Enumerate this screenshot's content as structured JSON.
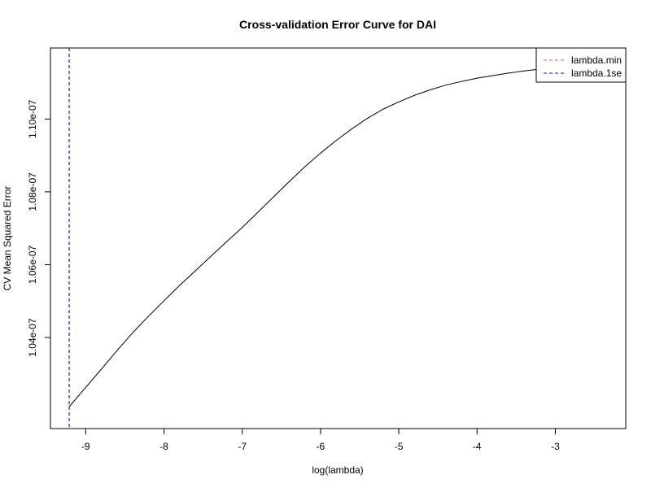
{
  "chart_data": {
    "type": "line",
    "title": "Cross-validation Error Curve for DAI",
    "xlabel": "log(lambda)",
    "ylabel": "CV Mean Squared Error",
    "xlim": [
      -9.45,
      -2.1
    ],
    "ylim": [
      1.015e-07,
      1.1195e-07
    ],
    "x_ticks": [
      -9,
      -8,
      -7,
      -6,
      -5,
      -4,
      -3
    ],
    "x_tick_labels": [
      "-9",
      "-8",
      "-7",
      "-6",
      "-5",
      "-4",
      "-3"
    ],
    "y_ticks": [
      1.04e-07,
      1.06e-07,
      1.08e-07,
      1.1e-07
    ],
    "y_tick_labels": [
      "1.04e-07",
      "1.06e-07",
      "1.08e-07",
      "1.10e-07"
    ],
    "grid": false,
    "legend_position": "top-right",
    "legend": [
      {
        "label": "lambda.min",
        "color": "#d9534f",
        "dash": "dashed"
      },
      {
        "label": "lambda.1se",
        "color": "#0000ff",
        "dash": "dashed"
      }
    ],
    "series": [
      {
        "color": "#000000",
        "x": [
          -9.21,
          -9.0,
          -8.8,
          -8.6,
          -8.4,
          -8.2,
          -8.0,
          -7.8,
          -7.6,
          -7.4,
          -7.2,
          -7.0,
          -6.8,
          -6.6,
          -6.4,
          -6.2,
          -6.0,
          -5.8,
          -5.6,
          -5.4,
          -5.2,
          -5.0,
          -4.8,
          -4.6,
          -4.4,
          -4.2,
          -4.0,
          -3.8,
          -3.6,
          -3.4,
          -3.2,
          -3.0
        ],
        "y": [
          1.021e-07,
          1.0263e-07,
          1.0313e-07,
          1.0364e-07,
          1.0413e-07,
          1.0458e-07,
          1.0501e-07,
          1.0543e-07,
          1.0583e-07,
          1.0623e-07,
          1.0663e-07,
          1.0702e-07,
          1.0744e-07,
          1.0786e-07,
          1.0828e-07,
          1.0869e-07,
          1.0906e-07,
          1.0941e-07,
          1.0973e-07,
          1.1002e-07,
          1.1027e-07,
          1.1047e-07,
          1.1065e-07,
          1.108e-07,
          1.1093e-07,
          1.1103e-07,
          1.1112e-07,
          1.1119e-07,
          1.1126e-07,
          1.1132e-07,
          1.1137e-07,
          1.1142e-07
        ]
      }
    ],
    "vlines": [
      {
        "legend_label": "lambda.min",
        "x": -9.21,
        "color": "#d9534f"
      },
      {
        "legend_label": "lambda.1se",
        "x": -9.21,
        "color": "#0000ff"
      }
    ]
  }
}
